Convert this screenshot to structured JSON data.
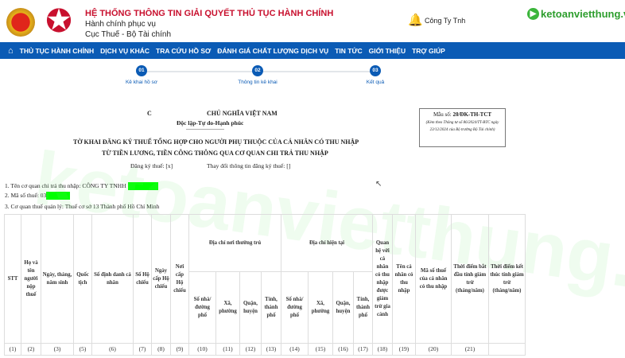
{
  "header": {
    "system_title": "HỆ THỐNG THÔNG TIN GIẢI QUYẾT THỦ TỤC HÀNH CHÍNH",
    "subtitle1": "Hành chính phục vụ",
    "subtitle2": "Cục Thuế - Bộ Tài chính",
    "company": "Công Ty Tnh",
    "brand": "ketoanvietthung.vn"
  },
  "nav": {
    "items": [
      "THỦ TỤC HÀNH CHÍNH",
      "DỊCH VỤ KHÁC",
      "TRA CỨU HỒ SƠ",
      "ĐÁNH GIÁ CHẤT LƯỢNG DỊCH VỤ",
      "TIN TỨC",
      "GIỚI THIỆU",
      "TRỢ GIÚP"
    ]
  },
  "steps": [
    {
      "num": "01",
      "label": "Kê khai hồ sơ"
    },
    {
      "num": "02",
      "label": "Thông tin kê khai"
    },
    {
      "num": "03",
      "label": "Kết quả"
    }
  ],
  "form": {
    "republic_prefix": "C",
    "republic": "CHỦ NGHĨA VIỆT NAM",
    "motto": "Độc lập-Tự do-Hạnh phúc",
    "dashes": "------------------------",
    "title1": "TỜ KHAI ĐĂNG KÝ THUẾ TỔNG HỢP CHO NGƯỜI PHỤ THUỘC CỦA CÁ NHÂN CÓ THU NHẬP",
    "title2": "TỪ TIỀN LƯƠNG, TIỀN CÔNG THÔNG QUA CƠ QUAN CHI TRẢ THU NHẬP",
    "register": "Đăng ký thuế: [x]",
    "change": "Thay đổi thông tin đăng ký thuế: []",
    "mau_so_label": "Mẫu số: ",
    "mau_so": "20/ĐK-TH-TCT",
    "mau_note": "(Kèm theo Thông tư số 86/2024/TT-BTC ngày 23/12/2024 của Bộ trưởng Bộ Tài chính)",
    "line1": "1. Tên cơ quan chi trả thu nhập: CÔNG TY TNHH ",
    "line2": "2. Mã số thuế: 03",
    "line3": "3. Cơ quan thuế quản lý: Thuế cơ sở 13 Thành phố Hồ Chí Minh"
  },
  "table": {
    "group1": "Địa chỉ nơi thường trú",
    "group2": "Địa chỉ hiện tại",
    "cols": [
      "STT",
      "Họ và tên người nộp thuế",
      "Ngày, tháng, năm sinh",
      "Quốc tịch",
      "Số định danh cá nhân",
      "Số Hộ chiếu",
      "Ngày cấp Hộ chiếu",
      "Nơi cấp Hộ chiếu",
      "Quan hệ với cá nhân có thu nhập được giảm trừ gia cảnh",
      "Tên cá nhân có thu nhập",
      "Mã số thuế của cá nhân có thu nhập",
      "Thời điểm bắt đầu tính giảm trừ (tháng/năm)",
      "Thời điểm kết thúc tính giảm trừ (tháng/năm)"
    ],
    "sub": [
      "Số nhà/ đường phố",
      "Xã, phường",
      "Quận, huyện",
      "Tỉnh, thành phố",
      "Số nhà/ đường phố",
      "Xã, phường",
      "Quận, huyện",
      "Tỉnh, thành phố"
    ],
    "nums": [
      "(1)",
      "(2)",
      "(3)",
      "(5)",
      "(6)",
      "(7)",
      "(8)",
      "(9)",
      "(10)",
      "(11)",
      "(12)",
      "(13)",
      "(14)",
      "(15)",
      "(16)",
      "(17)",
      "(18)",
      "(19)",
      "(20)",
      "(21)",
      ""
    ]
  }
}
